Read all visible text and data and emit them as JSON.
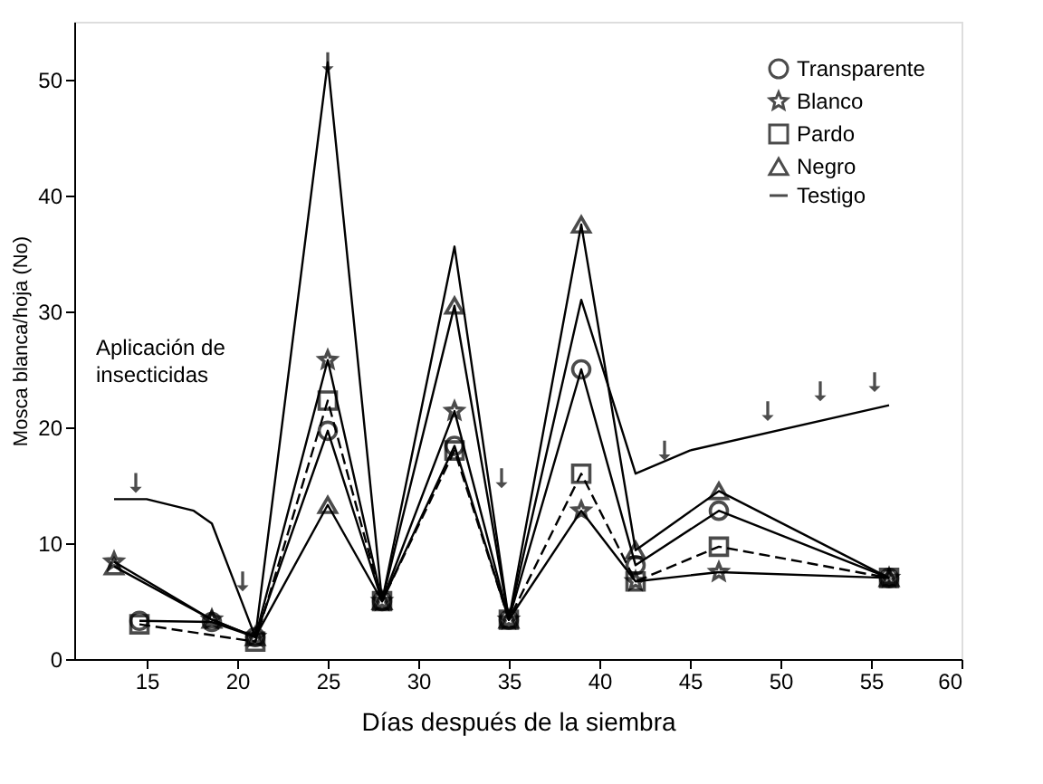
{
  "chart_data": {
    "type": "line",
    "xlabel": "Días después de la siembra",
    "ylabel": "Mosca blanca/hoja (No)",
    "xlim": [
      11,
      60
    ],
    "xticks": [
      15,
      20,
      25,
      30,
      35,
      40,
      45,
      50,
      55,
      60
    ],
    "ylim": [
      0,
      55
    ],
    "yticks": [
      0,
      10,
      20,
      30,
      40,
      50
    ],
    "legend": "top right",
    "grid": false,
    "annotations": [
      "Aplicación de insecticidas"
    ],
    "series": [
      {
        "name": "Transparente",
        "color": "#000000",
        "marker": "circle",
        "line_style": "solid",
        "x": [
          14.6,
          18.6,
          21,
          25,
          28,
          32,
          35,
          39,
          42,
          46.6,
          56
        ],
        "values": [
          3.3,
          3.2,
          1.9,
          19.7,
          5,
          18.4,
          3.4,
          25,
          8.1,
          12.8,
          7
        ]
      },
      {
        "name": "Blanco",
        "color": "#000000",
        "marker": "star",
        "line_style": "solid",
        "x": [
          13.2,
          18.6,
          21,
          25,
          28,
          32,
          35,
          39,
          42,
          46.6,
          56
        ],
        "values": [
          8.4,
          3.4,
          1.9,
          25.8,
          5,
          21.4,
          3.4,
          12.8,
          6.7,
          7.5,
          7
        ]
      },
      {
        "name": "Pardo",
        "color": "#000000",
        "marker": "square",
        "line_style": "dashed",
        "x": [
          14.6,
          21,
          25,
          28,
          32,
          35,
          39,
          42,
          46.6,
          56
        ],
        "values": [
          3,
          1.5,
          22.3,
          5,
          18,
          3.4,
          16,
          6.7,
          9.7,
          7
        ]
      },
      {
        "name": "Negro",
        "color": "#000000",
        "marker": "triangle",
        "line_style": "solid",
        "x": [
          13.2,
          18.6,
          21,
          25,
          28,
          32,
          35,
          39,
          42,
          46.6,
          56
        ],
        "values": [
          8,
          3.4,
          1.9,
          13.3,
          5,
          30.5,
          3.4,
          37.5,
          9.4,
          14.5,
          7
        ]
      },
      {
        "name": "Testigo",
        "color": "#000000",
        "marker": "none",
        "line_style": "solid",
        "x": [
          13.2,
          15,
          17.6,
          18.6,
          21,
          25,
          28,
          32,
          35,
          39,
          42,
          45,
          56
        ],
        "values": [
          13.8,
          13.8,
          12.8,
          11.7,
          1.9,
          51.5,
          5,
          35.6,
          3.4,
          31,
          16,
          18,
          21.9
        ]
      },
      {
        "type": "scatter",
        "color": "#000000",
        "marker": "triangle",
        "x": [
          14.4,
          20.3,
          25,
          34.6,
          43.6,
          49.3,
          52.2,
          55.2,
          56
        ],
        "values": [
          15.2,
          6.7,
          51.5,
          15.6,
          18,
          21.4,
          23.1,
          23.9,
          7
        ]
      }
    ]
  }
}
